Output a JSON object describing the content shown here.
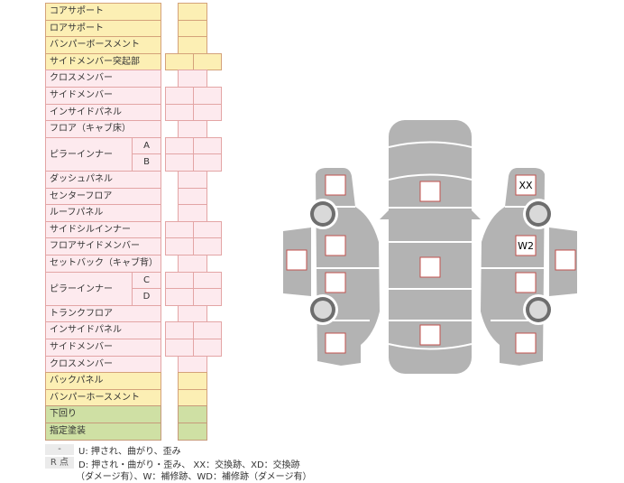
{
  "rows": [
    {
      "label": "コアサポート",
      "color": "yellow",
      "cells": "single"
    },
    {
      "label": "ロアサポート",
      "color": "yellow",
      "cells": "single"
    },
    {
      "label": "バンパーボースメント",
      "color": "yellow",
      "cells": "single"
    },
    {
      "label": "サイドメンバー突起部",
      "color": "yellow",
      "cells": "double"
    },
    {
      "label": "クロスメンバー",
      "color": "pink",
      "cells": "single"
    },
    {
      "label": "サイドメンバー",
      "color": "pink",
      "cells": "double"
    },
    {
      "label": "インサイドパネル",
      "color": "pink",
      "cells": "double"
    },
    {
      "label": "フロア（キャブ床）",
      "color": "pink",
      "cells": "single"
    },
    {
      "label": "ピラーインナー",
      "sub": "A",
      "color": "pink",
      "cells": "double"
    },
    {
      "label": "",
      "sub": "B",
      "color": "pink",
      "cells": "double"
    },
    {
      "label": "ダッシュパネル",
      "color": "pink",
      "cells": "single"
    },
    {
      "label": "センターフロア",
      "color": "pink",
      "cells": "single"
    },
    {
      "label": "ルーフパネル",
      "color": "pink",
      "cells": "single"
    },
    {
      "label": "サイドシルインナー",
      "color": "pink",
      "cells": "double"
    },
    {
      "label": "フロアサイドメンバー",
      "color": "pink",
      "cells": "double"
    },
    {
      "label": "セットバック（キャブ背）",
      "color": "pink",
      "cells": "single"
    },
    {
      "label": "ピラーインナー",
      "sub": "C",
      "color": "pink",
      "cells": "double"
    },
    {
      "label": "",
      "sub": "D",
      "color": "pink",
      "cells": "double"
    },
    {
      "label": "トランクフロア",
      "color": "pink",
      "cells": "single"
    },
    {
      "label": "インサイドパネル",
      "color": "pink",
      "cells": "double"
    },
    {
      "label": "サイドメンバー",
      "color": "pink",
      "cells": "double"
    },
    {
      "label": "クロスメンバー",
      "color": "pink",
      "cells": "single"
    },
    {
      "label": "バックパネル",
      "color": "yellow",
      "cells": "single"
    },
    {
      "label": "バンパーホースメント",
      "color": "yellow",
      "cells": "single"
    },
    {
      "label": "下回り",
      "color": "green",
      "cells": "single"
    },
    {
      "label": "指定塗装",
      "color": "green",
      "cells": "single"
    }
  ],
  "legend": {
    "key1": "-",
    "text1": "U: 押され、曲がり、歪み",
    "key2": "R 点",
    "text2a": "D: 押され・曲がり・歪み、 XX：交換跡、XD：交換跡",
    "text2b": "（ダメージ有）、W：補修跡、WD：補修跡（ダメージ有）"
  },
  "diagram": {
    "marks": {
      "right_front": "XX",
      "right_front_door": "W2"
    },
    "colors": {
      "body": "#b3b3b3",
      "box_border": "#c0504d",
      "wheel": "#6e6e6e",
      "wheel_inner": "#d9d9d9"
    }
  }
}
